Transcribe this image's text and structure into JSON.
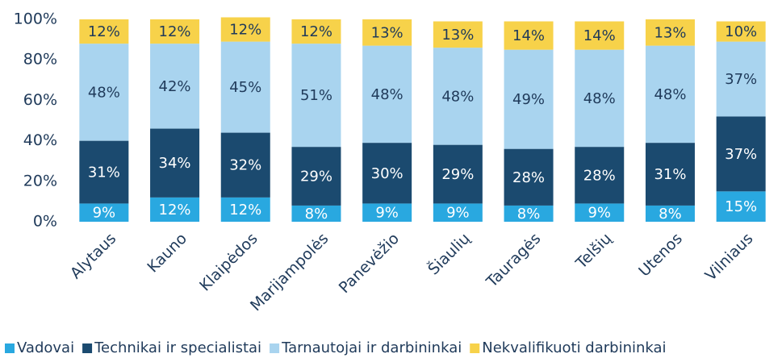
{
  "chart_data": {
    "type": "stacked_bar",
    "categories": [
      "Alytaus",
      "Kauno",
      "Klaipėdos",
      "Marijampolės",
      "Panevėžio",
      "Šiaulių",
      "Tauragės",
      "Telšių",
      "Utenos",
      "Vilniaus"
    ],
    "series": [
      {
        "name": "Vadovai",
        "color": "#29a8e0",
        "values": [
          9,
          12,
          12,
          8,
          9,
          9,
          8,
          9,
          8,
          15
        ],
        "value_labels": [
          "9%",
          "12%",
          "12%",
          "8%",
          "9%",
          "9%",
          "8%",
          "9%",
          "8%",
          "15%"
        ]
      },
      {
        "name": "Technikai ir specialistai",
        "color": "#1b4a6f",
        "values": [
          31,
          34,
          32,
          29,
          30,
          29,
          28,
          28,
          31,
          37
        ],
        "value_labels": [
          "31%",
          "34%",
          "32%",
          "29%",
          "30%",
          "29%",
          "28%",
          "28%",
          "31%",
          "37%"
        ]
      },
      {
        "name": "Tarnautojai ir darbininkai",
        "color": "#a9d4ef",
        "values": [
          48,
          42,
          45,
          51,
          48,
          48,
          49,
          48,
          48,
          37
        ],
        "value_labels": [
          "48%",
          "42%",
          "45%",
          "51%",
          "48%",
          "48%",
          "49%",
          "48%",
          "48%",
          "37%"
        ]
      },
      {
        "name": "Nekvalifikuoti darbininkai",
        "color": "#f7d24a",
        "values": [
          12,
          12,
          12,
          12,
          13,
          13,
          14,
          14,
          13,
          10
        ],
        "value_labels": [
          "12%",
          "12%",
          "12%",
          "12%",
          "13%",
          "13%",
          "14%",
          "14%",
          "13%",
          "10%"
        ]
      }
    ],
    "ylim": [
      0,
      100
    ],
    "yticks": [
      {
        "value": 0,
        "label": "0%"
      },
      {
        "value": 20,
        "label": "20%"
      },
      {
        "value": 40,
        "label": "40%"
      },
      {
        "value": 60,
        "label": "60%"
      },
      {
        "value": 80,
        "label": "80%"
      },
      {
        "value": 100,
        "label": "100%"
      }
    ],
    "legend": "bottom"
  }
}
